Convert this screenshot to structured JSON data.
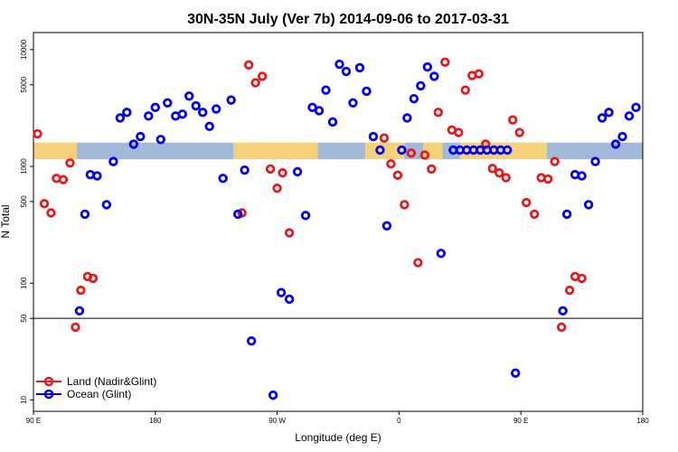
{
  "chart_data": {
    "type": "scatter",
    "title": "30N-35N July (Ver 7b)   2014-09-06 to 2017-03-31",
    "xlabel": "Longitude (deg E)",
    "ylabel": "N Total",
    "y_scale": "log",
    "xlim": [
      90,
      540
    ],
    "ylim": [
      8,
      14000
    ],
    "x_ticks": [
      {
        "value": 90,
        "label": "90 E"
      },
      {
        "value": 180,
        "label": "180"
      },
      {
        "value": 270,
        "label": "90 W"
      },
      {
        "value": 360,
        "label": "0"
      },
      {
        "value": 450,
        "label": "90 E"
      },
      {
        "value": 540,
        "label": "180"
      }
    ],
    "y_ticks": [
      {
        "value": 10,
        "label": "10"
      },
      {
        "value": 50,
        "label": "50"
      },
      {
        "value": 100,
        "label": "100"
      },
      {
        "value": 500,
        "label": "500"
      },
      {
        "value": 1000,
        "label": "1000"
      },
      {
        "value": 5000,
        "label": "5000"
      },
      {
        "value": 10000,
        "label": "10000"
      }
    ],
    "reference_line": 50,
    "band": {
      "y_low": 1150,
      "y_high": 1600,
      "land_color": "#F5D27A",
      "ocean_color": "#A3B9D9",
      "land_ranges": [
        [
          90,
          122
        ],
        [
          238,
          300
        ],
        [
          335,
          364
        ],
        [
          378,
          392
        ],
        [
          405,
          469
        ]
      ],
      "ocean_ranges": [
        [
          122,
          238
        ],
        [
          300,
          335
        ],
        [
          364,
          378
        ],
        [
          392,
          405
        ],
        [
          469,
          540
        ]
      ]
    },
    "series": [
      {
        "name": "Land (Nadir&Glint)",
        "color": "#E41A1C",
        "points": [
          [
            93,
            1900
          ],
          [
            98,
            480
          ],
          [
            103,
            400
          ],
          [
            107,
            790
          ],
          [
            112,
            770
          ],
          [
            117,
            1070
          ],
          [
            121,
            42
          ],
          [
            125,
            87
          ],
          [
            130,
            114
          ],
          [
            134,
            110
          ],
          [
            244,
            400
          ],
          [
            249,
            7400
          ],
          [
            254,
            5200
          ],
          [
            259,
            5900
          ],
          [
            265,
            950
          ],
          [
            270,
            650
          ],
          [
            274,
            880
          ],
          [
            279,
            270
          ],
          [
            349,
            1750
          ],
          [
            354,
            1050
          ],
          [
            359,
            840
          ],
          [
            364,
            470
          ],
          [
            369,
            1300
          ],
          [
            374,
            150
          ],
          [
            379,
            1250
          ],
          [
            384,
            950
          ],
          [
            389,
            2900
          ],
          [
            394,
            7800
          ],
          [
            399,
            2050
          ],
          [
            404,
            1950
          ],
          [
            409,
            4500
          ],
          [
            414,
            6000
          ],
          [
            419,
            6200
          ],
          [
            424,
            1550
          ],
          [
            429,
            960
          ],
          [
            434,
            880
          ],
          [
            439,
            800
          ],
          [
            444,
            2500
          ],
          [
            449,
            1950
          ],
          [
            454,
            490
          ],
          [
            460,
            390
          ],
          [
            465,
            800
          ],
          [
            470,
            780
          ],
          [
            475,
            1100
          ],
          [
            480,
            42
          ],
          [
            486,
            87
          ],
          [
            490,
            114
          ],
          [
            495,
            110
          ]
        ]
      },
      {
        "name": "Ocean (Glint)",
        "color": "#0000EE",
        "points": [
          [
            124,
            58
          ],
          [
            128,
            390
          ],
          [
            132,
            850
          ],
          [
            137,
            830
          ],
          [
            144,
            470
          ],
          [
            149,
            1100
          ],
          [
            154,
            2600
          ],
          [
            159,
            2900
          ],
          [
            164,
            1550
          ],
          [
            169,
            1800
          ],
          [
            175,
            2700
          ],
          [
            180,
            3200
          ],
          [
            184,
            1700
          ],
          [
            189,
            3500
          ],
          [
            195,
            2700
          ],
          [
            200,
            2800
          ],
          [
            205,
            4000
          ],
          [
            210,
            3300
          ],
          [
            215,
            2900
          ],
          [
            220,
            2200
          ],
          [
            225,
            3100
          ],
          [
            230,
            790
          ],
          [
            236,
            3700
          ],
          [
            241,
            390
          ],
          [
            246,
            930
          ],
          [
            251,
            32
          ],
          [
            267,
            11
          ],
          [
            273,
            83
          ],
          [
            279,
            73
          ],
          [
            285,
            900
          ],
          [
            291,
            380
          ],
          [
            296,
            3200
          ],
          [
            301,
            3000
          ],
          [
            306,
            4500
          ],
          [
            311,
            2400
          ],
          [
            316,
            7500
          ],
          [
            321,
            6500
          ],
          [
            326,
            3500
          ],
          [
            331,
            7000
          ],
          [
            336,
            4400
          ],
          [
            341,
            1800
          ],
          [
            346,
            1380
          ],
          [
            351,
            310
          ],
          [
            362,
            1380
          ],
          [
            366,
            2600
          ],
          [
            371,
            3800
          ],
          [
            376,
            4900
          ],
          [
            381,
            7100
          ],
          [
            386,
            5900
          ],
          [
            391,
            180
          ],
          [
            400,
            1380
          ],
          [
            405,
            1380
          ],
          [
            410,
            1380
          ],
          [
            415,
            1380
          ],
          [
            420,
            1380
          ],
          [
            425,
            1380
          ],
          [
            430,
            1380
          ],
          [
            435,
            1380
          ],
          [
            440,
            1380
          ],
          [
            446,
            17
          ],
          [
            481,
            58
          ],
          [
            484,
            390
          ],
          [
            490,
            850
          ],
          [
            495,
            830
          ],
          [
            500,
            470
          ],
          [
            505,
            1100
          ],
          [
            510,
            2600
          ],
          [
            515,
            2900
          ],
          [
            520,
            1550
          ],
          [
            525,
            1800
          ],
          [
            530,
            2700
          ],
          [
            535,
            3200
          ]
        ]
      }
    ],
    "legend": {
      "position": "bottom-left",
      "entries": [
        "Land (Nadir&Glint)",
        "Ocean (Glint)"
      ]
    }
  }
}
